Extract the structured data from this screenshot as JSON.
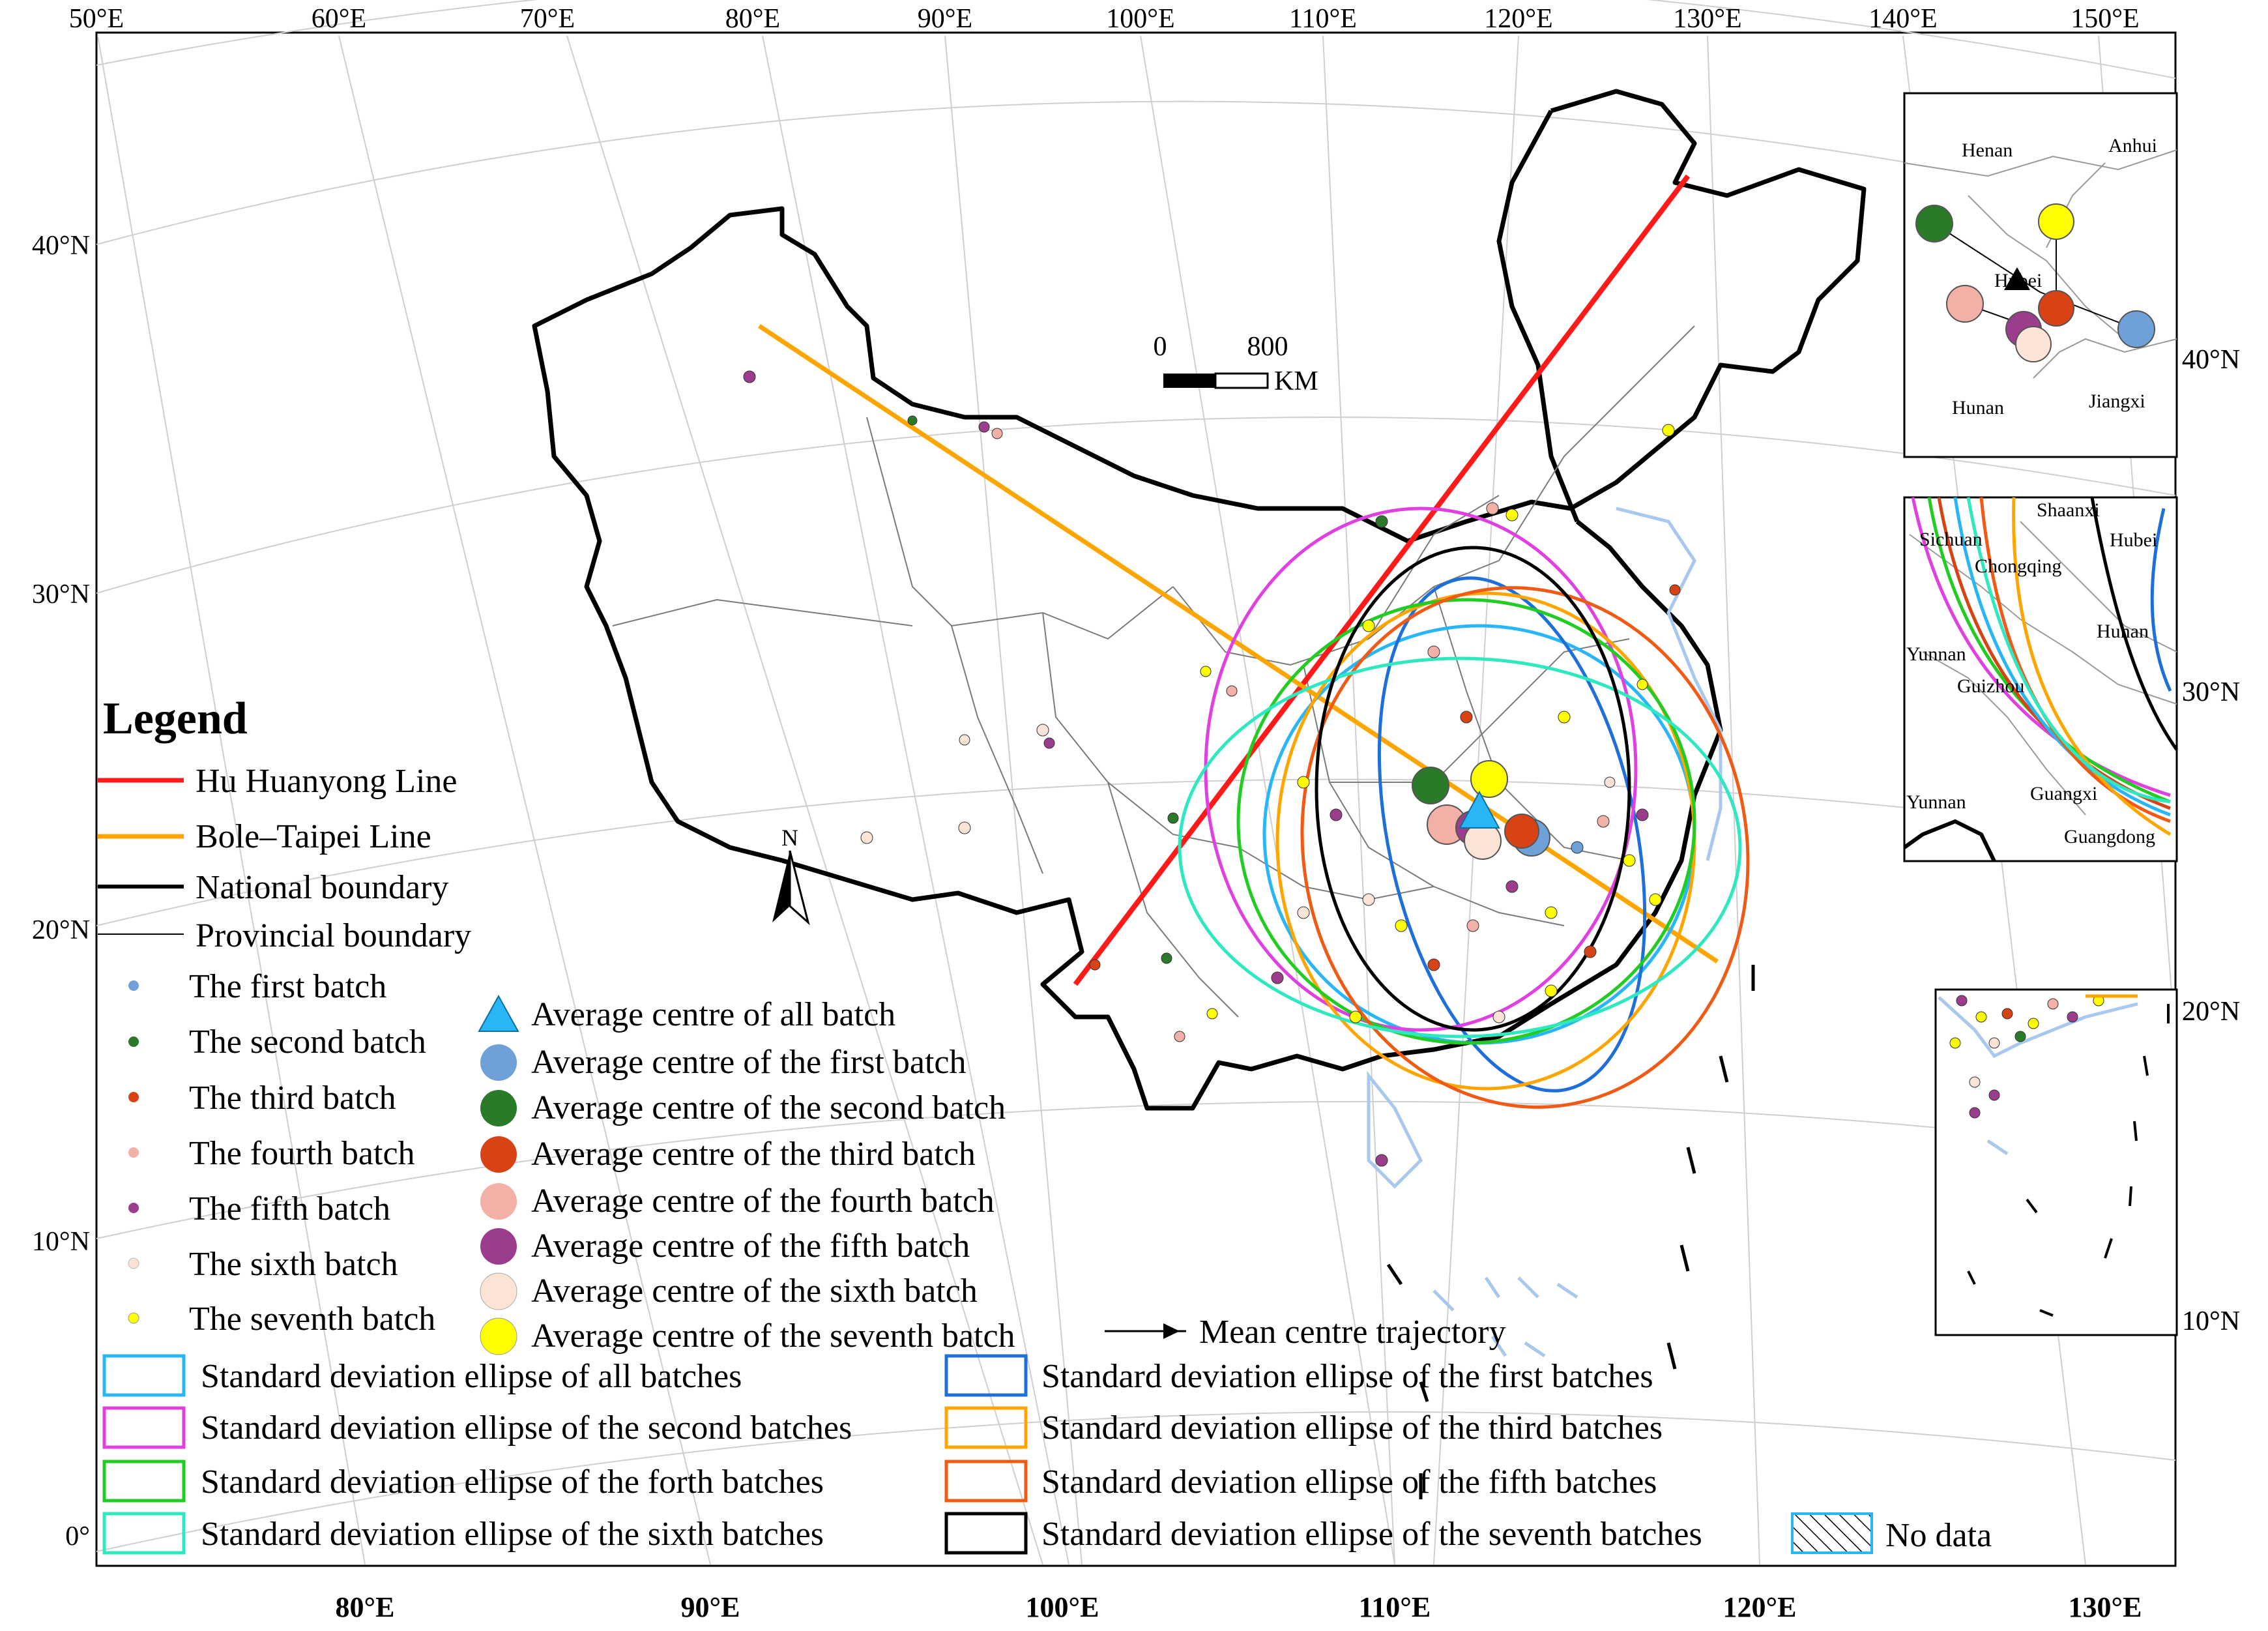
{
  "axes": {
    "top_lon": [
      "50°E",
      "60°E",
      "70°E",
      "80°E",
      "90°E",
      "100°E",
      "110°E",
      "120°E",
      "130°E",
      "140°E",
      "150°E"
    ],
    "bottom_lon": [
      "80°E",
      "90°E",
      "100°E",
      "110°E",
      "120°E",
      "130°E"
    ],
    "left_lat": [
      "40°N",
      "30°N",
      "20°N",
      "10°N",
      "0°"
    ],
    "right_lat": [
      "40°N",
      "30°N",
      "20°N",
      "10°N"
    ]
  },
  "scale_bar": {
    "zero": "0",
    "max": "800",
    "unit": "KM"
  },
  "north_arrow": "N",
  "legend": {
    "title": "Legend",
    "lines": [
      {
        "label": "Hu Huanyong Line",
        "color": "#ff1a1a"
      },
      {
        "label": "Bole–Taipei Line",
        "color": "#ffa500"
      },
      {
        "label": "National boundary",
        "color": "#000000"
      },
      {
        "label": "Provincial boundary",
        "color": "#000000"
      }
    ],
    "batches": [
      {
        "label": "The first batch",
        "color": "#6fa0d8"
      },
      {
        "label": "The second batch",
        "color": "#2a7a2a"
      },
      {
        "label": "The third batch",
        "color": "#d84315"
      },
      {
        "label": "The fourth batch",
        "color": "#f2b0a6"
      },
      {
        "label": "The fifth batch",
        "color": "#9b3c8c"
      },
      {
        "label": "The sixth batch",
        "color": "#fbe3d6"
      },
      {
        "label": "The seventh batch",
        "color": "#ffff00"
      }
    ],
    "centres": [
      {
        "label": "Average centre of all batch",
        "color": "#29b6f6",
        "shape": "triangle"
      },
      {
        "label": "Average centre of the first batch",
        "color": "#6fa0d8"
      },
      {
        "label": "Average centre of the second batch",
        "color": "#2a7a2a"
      },
      {
        "label": "Average centre of the third batch",
        "color": "#d84315"
      },
      {
        "label": "Average centre of the fourth batch",
        "color": "#f2b0a6"
      },
      {
        "label": "Average centre of the fifth batch",
        "color": "#9b3c8c"
      },
      {
        "label": "Average centre of the sixth batch",
        "color": "#fbe3d6"
      },
      {
        "label": "Average centre of the seventh batch",
        "color": "#ffff00"
      }
    ],
    "trajectory": "Mean centre trajectory",
    "ellipses": [
      {
        "label": "Standard deviation ellipse of all batches",
        "color": "#29b6f6"
      },
      {
        "label": "Standard deviation ellipse of the first batches",
        "color": "#1e6fd9"
      },
      {
        "label": "Standard deviation ellipse of the second batches",
        "color": "#e040e0"
      },
      {
        "label": "Standard deviation ellipse of the third batches",
        "color": "#ffa500"
      },
      {
        "label": "Standard deviation ellipse of the forth batches",
        "color": "#22cc22"
      },
      {
        "label": "Standard deviation ellipse of the fifth batches",
        "color": "#f05a14"
      },
      {
        "label": "Standard deviation ellipse of the sixth batches",
        "color": "#2ee8c0"
      },
      {
        "label": "Standard deviation ellipse of the seventh batches",
        "color": "#000000"
      }
    ],
    "no_data": "No data"
  },
  "inset_top": {
    "labels": [
      "Henan",
      "Anhui",
      "Hubei",
      "Hunan",
      "Jiangxi"
    ],
    "lat": "40°N"
  },
  "inset_mid": {
    "labels": [
      "Shaanxi",
      "Sichuan",
      "Chongqing",
      "Hubei",
      "Hunan",
      "Yunnan",
      "Guizhou",
      "Yunnan",
      "Guangxi",
      "Guangdong"
    ],
    "lat": "30°N"
  },
  "inset_bottom": {
    "lat_top": "20°N",
    "lat_bottom": "10°N"
  }
}
